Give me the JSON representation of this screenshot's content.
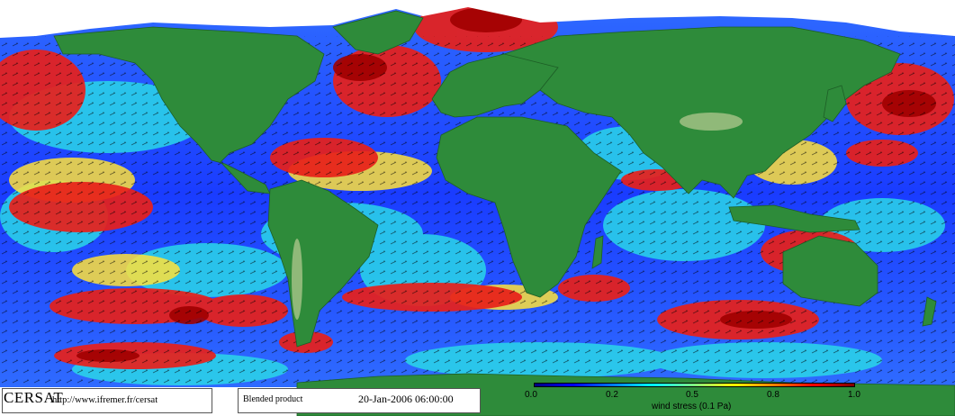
{
  "map": {
    "logo_text": "CERSAT",
    "url_text": "http://www.ifremer.fr/cersat",
    "product_text": "Blended product",
    "datetime_text": "20-Jan-2006 06:00:00",
    "colorbar": {
      "ticks": [
        "0.0",
        "0.2",
        "0.5",
        "0.8",
        "1.0"
      ],
      "label": "wind stress (0.1 Pa)"
    },
    "colors": {
      "land": "#2e8b3a",
      "ice": "#ffffff",
      "ocean_low": "#0000ff",
      "ocean_mid": "#00ffff",
      "ocean_high": "#ff0000"
    }
  }
}
